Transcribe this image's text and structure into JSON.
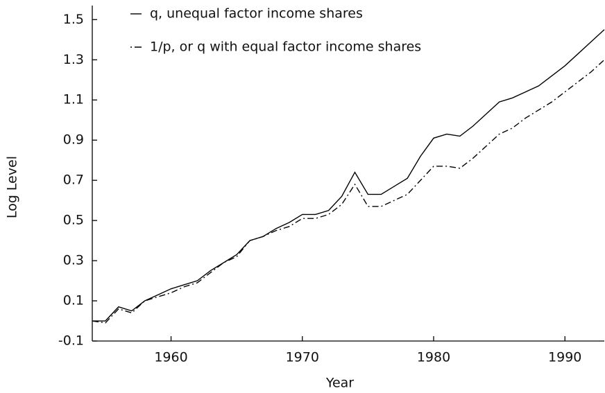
{
  "chart_data": {
    "type": "line",
    "x_label": "Year",
    "y_label": "Log Level",
    "x": [
      1954,
      1955,
      1956,
      1957,
      1958,
      1959,
      1960,
      1961,
      1962,
      1963,
      1964,
      1965,
      1966,
      1967,
      1968,
      1969,
      1970,
      1971,
      1972,
      1973,
      1974,
      1975,
      1976,
      1977,
      1978,
      1979,
      1980,
      1981,
      1982,
      1983,
      1984,
      1985,
      1986,
      1987,
      1988,
      1989,
      1990,
      1991,
      1992,
      1993
    ],
    "series": [
      {
        "name": "q, unequal factor income shares",
        "color": "#000000",
        "dash": "solid",
        "values": [
          0.0,
          0.0,
          0.07,
          0.05,
          0.1,
          0.13,
          0.16,
          0.18,
          0.2,
          0.25,
          0.29,
          0.33,
          0.4,
          0.42,
          0.46,
          0.49,
          0.53,
          0.53,
          0.55,
          0.62,
          0.74,
          0.63,
          0.63,
          0.67,
          0.71,
          0.82,
          0.91,
          0.93,
          0.92,
          0.97,
          1.03,
          1.09,
          1.11,
          1.14,
          1.17,
          1.22,
          1.27,
          1.33,
          1.39,
          1.45
        ]
      },
      {
        "name": "1/p, or q with equal factor income shares",
        "color": "#000000",
        "dash": "dashdot",
        "values": [
          0.0,
          -0.01,
          0.06,
          0.04,
          0.1,
          0.12,
          0.14,
          0.17,
          0.19,
          0.24,
          0.29,
          0.32,
          0.4,
          0.42,
          0.45,
          0.47,
          0.51,
          0.51,
          0.53,
          0.58,
          0.68,
          0.57,
          0.57,
          0.6,
          0.63,
          0.7,
          0.77,
          0.77,
          0.76,
          0.81,
          0.87,
          0.93,
          0.96,
          1.01,
          1.05,
          1.09,
          1.14,
          1.19,
          1.24,
          1.3
        ]
      }
    ],
    "xlim": [
      1954,
      1993
    ],
    "xticks": [
      1960,
      1970,
      1980,
      1990
    ],
    "ylim": [
      -0.1,
      1.57
    ],
    "yticks": [
      -0.1,
      0.1,
      0.3,
      0.5,
      0.7,
      0.9,
      1.1,
      1.3,
      1.5
    ],
    "legend": "upper left",
    "grid": false
  }
}
